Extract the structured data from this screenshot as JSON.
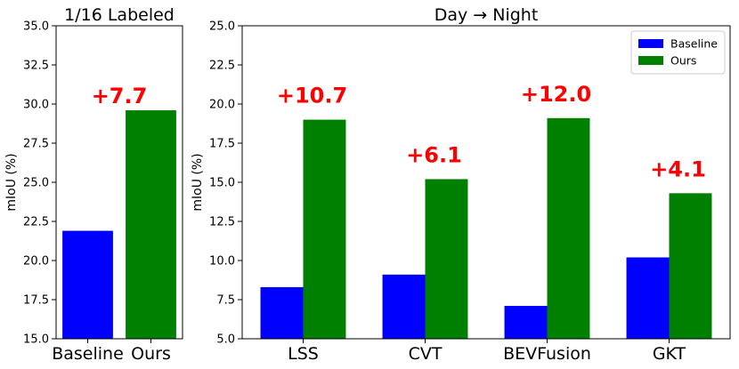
{
  "chart_data": [
    {
      "type": "bar",
      "title": "1/16 Labeled",
      "ylabel": "mIoU (%)",
      "ylim": [
        15.0,
        35.0
      ],
      "yticks": [
        "15.0",
        "17.5",
        "20.0",
        "22.5",
        "25.0",
        "27.5",
        "30.0",
        "32.5",
        "35.0"
      ],
      "categories": [
        "Baseline",
        "Ours"
      ],
      "values": [
        21.9,
        29.6
      ],
      "bar_colors": [
        "#0000ff",
        "#008000"
      ],
      "annotations": [
        {
          "text": "+7.7",
          "color": "#ff0000"
        }
      ]
    },
    {
      "type": "bar",
      "title": "Day → Night",
      "ylabel": "mIoU (%)",
      "ylim": [
        5.0,
        25.0
      ],
      "yticks": [
        "5.0",
        "7.5",
        "10.0",
        "12.5",
        "15.0",
        "17.5",
        "20.0",
        "22.5",
        "25.0"
      ],
      "categories": [
        "LSS",
        "CVT",
        "BEVFusion",
        "GKT"
      ],
      "series": [
        {
          "name": "Baseline",
          "color": "#0000ff",
          "values": [
            8.3,
            9.1,
            7.1,
            10.2
          ]
        },
        {
          "name": "Ours",
          "color": "#008000",
          "values": [
            19.0,
            15.2,
            19.1,
            14.3
          ]
        }
      ],
      "annotations": [
        {
          "text": "+10.7",
          "color": "#ff0000"
        },
        {
          "text": "+6.1",
          "color": "#ff0000"
        },
        {
          "text": "+12.0",
          "color": "#ff0000"
        },
        {
          "text": "+4.1",
          "color": "#ff0000"
        }
      ],
      "legend_position": "top-right"
    }
  ]
}
